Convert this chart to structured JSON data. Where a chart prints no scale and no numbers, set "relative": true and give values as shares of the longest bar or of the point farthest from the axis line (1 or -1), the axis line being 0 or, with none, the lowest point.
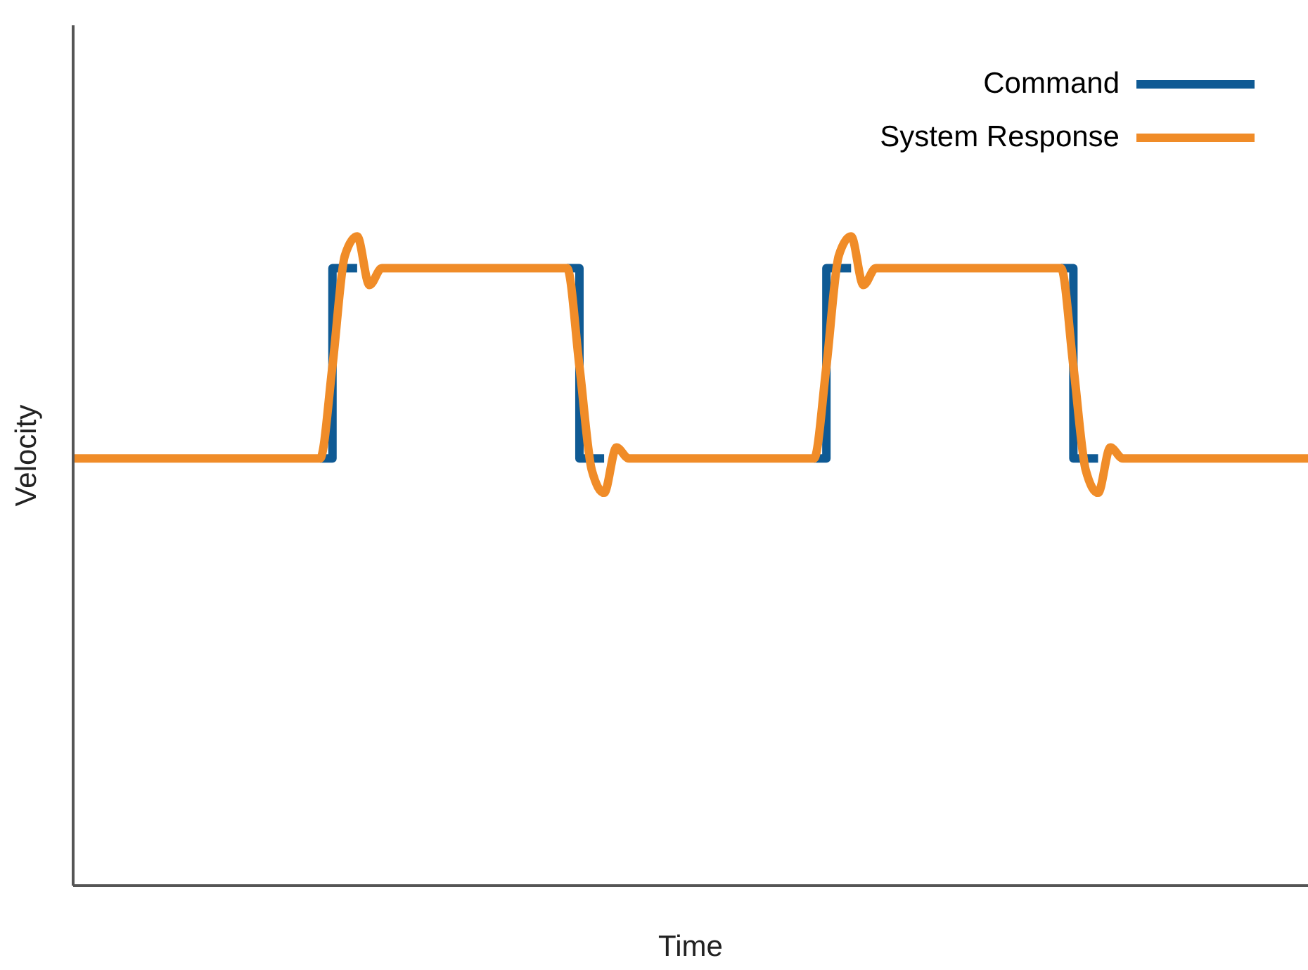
{
  "chart_data": {
    "type": "line",
    "xlabel": "Time",
    "ylabel": "Velocity",
    "relative": true,
    "legend": "top right",
    "marker": "none",
    "categories": [
      null,
      null,
      null,
      null,
      null,
      null,
      null,
      null,
      null,
      null,
      null,
      null,
      null,
      null,
      null,
      null,
      null,
      null,
      null,
      null,
      null,
      null,
      null,
      null,
      null,
      null,
      null,
      null,
      null,
      null,
      null,
      null,
      null,
      null,
      null,
      null,
      null,
      null,
      null,
      null,
      null,
      null,
      null,
      null,
      null,
      null,
      null,
      null,
      null,
      null,
      null,
      null,
      null,
      null,
      null,
      null,
      null,
      null,
      null,
      null,
      null,
      null,
      null,
      null,
      null,
      null,
      null,
      null,
      null,
      null,
      null,
      null,
      null,
      null,
      null,
      null,
      null,
      null,
      null,
      null,
      null,
      null,
      null,
      null,
      null,
      null,
      null,
      null,
      null,
      null,
      null,
      null,
      null,
      null,
      null,
      null,
      null,
      null,
      null,
      null,
      null
    ],
    "series": [
      {
        "name": "Command",
        "type": "step",
        "color": "#0f5a94",
        "values": [
          null,
          null,
          null,
          null,
          null,
          null,
          null,
          null,
          null,
          null,
          null,
          null,
          null,
          null,
          null,
          null,
          null,
          null,
          null,
          null,
          0.658,
          0.951,
          0.951,
          0.951,
          null,
          null,
          null,
          null,
          null,
          null,
          null,
          null,
          null,
          null,
          null,
          null,
          null,
          null,
          null,
          null,
          0.951,
          0.658,
          0.658,
          0.658,
          null,
          null,
          null,
          null,
          null,
          null,
          null,
          null,
          null,
          null,
          null,
          null,
          null,
          null,
          null,
          null,
          0.658,
          0.951,
          0.951,
          0.951,
          null,
          null,
          null,
          null,
          null,
          null,
          null,
          null,
          null,
          null,
          null,
          null,
          null,
          null,
          null,
          null,
          0.951,
          0.658,
          0.658,
          0.658,
          null,
          null,
          null,
          null,
          null,
          null,
          null,
          null,
          null,
          null,
          null,
          null,
          null,
          null,
          null,
          null,
          null
        ]
      },
      {
        "name": "System Response",
        "type": "line",
        "color": "#f08c28",
        "values": [
          0.658,
          0.658,
          0.658,
          0.658,
          0.658,
          0.658,
          0.658,
          0.658,
          0.658,
          0.658,
          0.658,
          0.658,
          0.658,
          0.658,
          0.658,
          0.658,
          0.658,
          0.658,
          0.658,
          0.658,
          0.658,
          0.8,
          0.97,
          1,
          0.925,
          0.951,
          0.951,
          0.951,
          0.951,
          0.951,
          0.951,
          0.951,
          0.951,
          0.951,
          0.951,
          0.951,
          0.951,
          0.951,
          0.951,
          0.951,
          0.951,
          0.8,
          0.64,
          0.605,
          0.675,
          0.658,
          0.658,
          0.658,
          0.658,
          0.658,
          0.658,
          0.658,
          0.658,
          0.658,
          0.658,
          0.658,
          0.658,
          0.658,
          0.658,
          0.658,
          0.658,
          0.8,
          0.97,
          1,
          0.925,
          0.951,
          0.951,
          0.951,
          0.951,
          0.951,
          0.951,
          0.951,
          0.951,
          0.951,
          0.951,
          0.951,
          0.951,
          0.951,
          0.951,
          0.951,
          0.951,
          0.8,
          0.64,
          0.605,
          0.675,
          0.658,
          0.658,
          0.658,
          0.658,
          0.658,
          0.658,
          0.658,
          0.658,
          0.658,
          0.658,
          0.658,
          0.658,
          0.658,
          0.658,
          0.658,
          0.658
        ]
      }
    ]
  }
}
